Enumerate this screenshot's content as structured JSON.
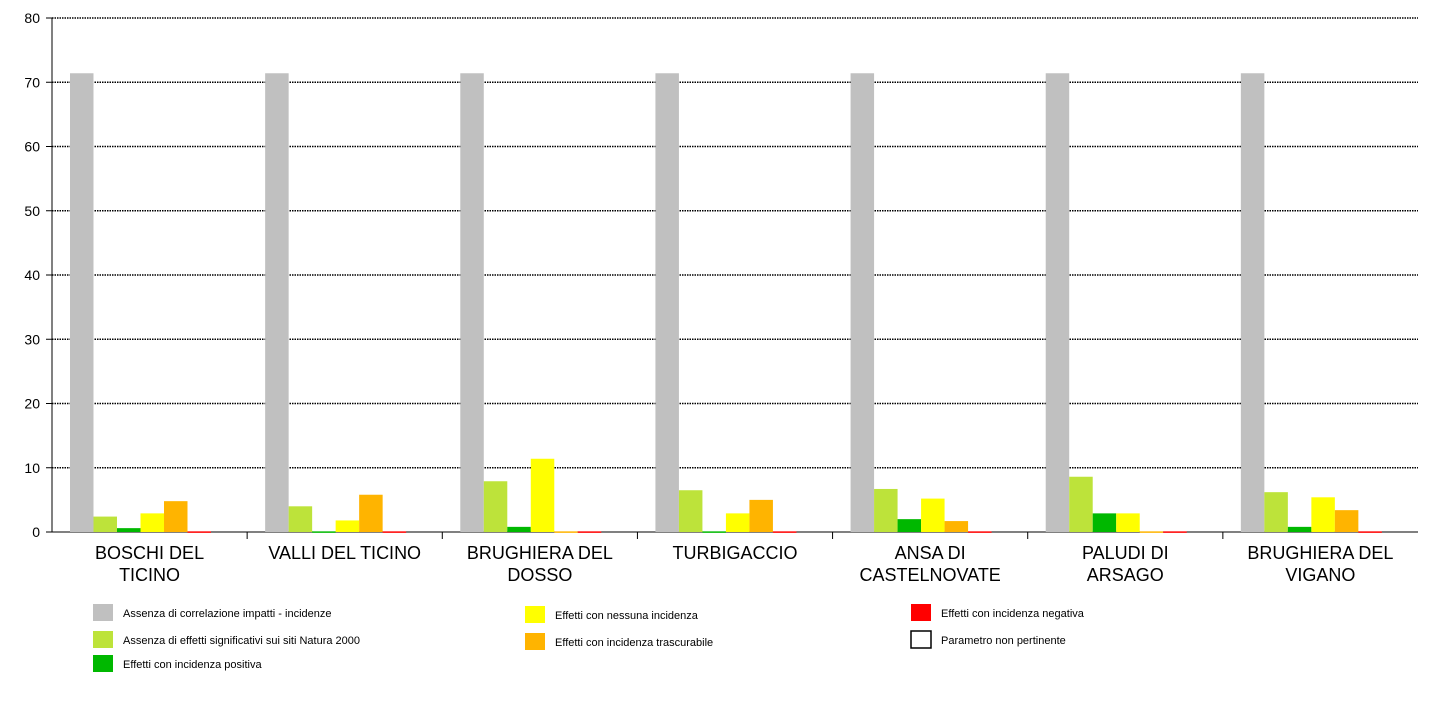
{
  "chart_data": {
    "type": "bar",
    "title": "",
    "xlabel": "",
    "ylabel": "",
    "ylim": [
      0,
      80
    ],
    "yticks": [
      0,
      10,
      20,
      30,
      40,
      50,
      60,
      70,
      80
    ],
    "grid": true,
    "legend_position": "bottom",
    "categories": [
      [
        "BOSCHI DEL",
        "TICINO"
      ],
      [
        "VALLI DEL TICINO"
      ],
      [
        "BRUGHIERA DEL",
        "DOSSO"
      ],
      [
        "TURBIGACCIO"
      ],
      [
        "ANSA DI",
        "CASTELNOVATE"
      ],
      [
        "PALUDI DI",
        "ARSAGO"
      ],
      [
        "BRUGHIERA DEL",
        "VIGANO"
      ]
    ],
    "series": [
      {
        "name": "Assenza di correlazione impatti - incidenze",
        "color": "#c0c0c0",
        "values": [
          71.4,
          71.4,
          71.4,
          71.4,
          71.4,
          71.4,
          71.4
        ]
      },
      {
        "name": "Assenza di effetti significativi sui siti Natura 2000",
        "color": "#bde33a",
        "values": [
          2.4,
          4.0,
          7.9,
          6.5,
          6.7,
          8.6,
          6.2
        ]
      },
      {
        "name": "Effetti con incidenza positiva",
        "color": "#00b800",
        "values": [
          0.6,
          0.1,
          0.8,
          0.1,
          2.0,
          2.9,
          0.8
        ]
      },
      {
        "name": "Effetti con nessuna incidenza",
        "color": "#ffff00",
        "values": [
          2.9,
          1.8,
          11.4,
          2.9,
          5.2,
          2.9,
          5.4
        ]
      },
      {
        "name": "Effetti con incidenza trascurabile",
        "color": "#ffb400",
        "values": [
          4.8,
          5.8,
          0.1,
          5.0,
          1.7,
          0.1,
          3.4
        ]
      },
      {
        "name": "Effetti con incidenza negativa",
        "color": "#ff0000",
        "values": [
          0.1,
          0.1,
          0.1,
          0.1,
          0.1,
          0.1,
          0.1
        ]
      },
      {
        "name": "Parametro non pertinente",
        "color": "#ffffff",
        "values": [
          0,
          0,
          0,
          0,
          0,
          0,
          0
        ]
      }
    ]
  }
}
